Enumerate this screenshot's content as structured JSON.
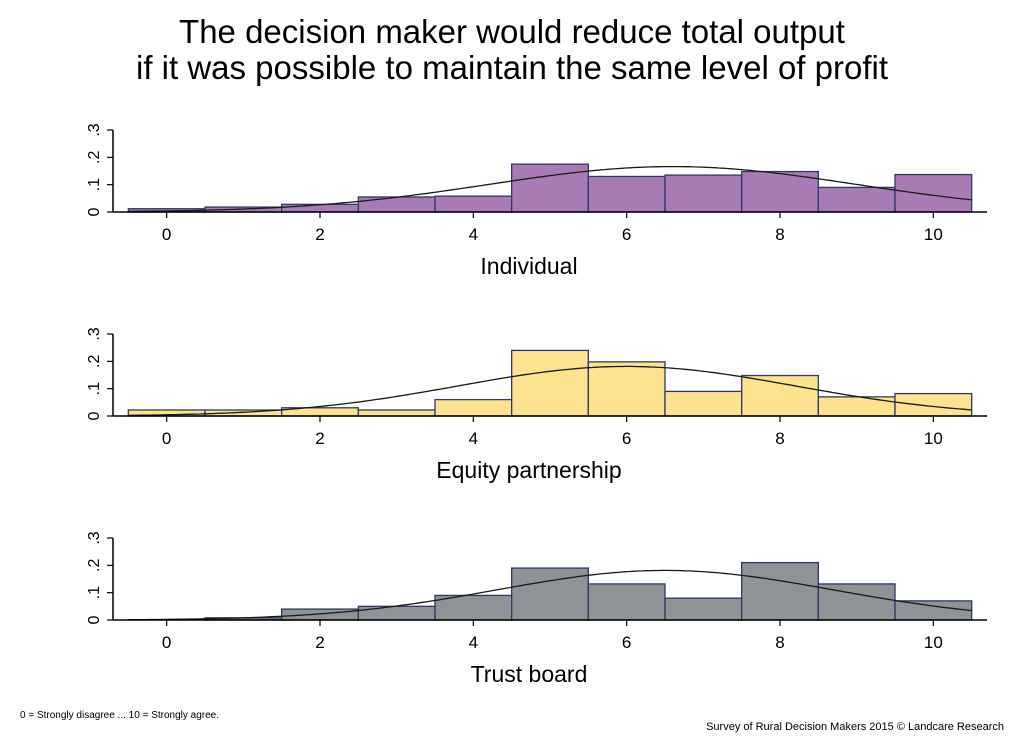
{
  "title_line1": "The decision maker would reduce total output",
  "title_line2": "if it was possible to maintain the same level of profit",
  "footnote_left": "0 = Strongly disagree ... 10 = Strongly agree.",
  "footnote_right": "Survey of Rural Decision Makers 2015 © Landcare Research",
  "chart_data": [
    {
      "type": "bar",
      "xlabel": "Individual",
      "fill": "#a87bb5",
      "stroke": "#2c3a64",
      "xlim": [
        -0.7,
        10.7
      ],
      "ylim": [
        0,
        0.3
      ],
      "xticks": [
        0,
        2,
        4,
        6,
        8,
        10
      ],
      "yticks": [
        {
          "v": 0,
          "label": "0"
        },
        {
          "v": 0.1,
          "label": ".1"
        },
        {
          "v": 0.2,
          "label": ".2"
        },
        {
          "v": 0.3,
          "label": ".3"
        }
      ],
      "categories": [
        0,
        1,
        2,
        3,
        4,
        5,
        6,
        7,
        8,
        9,
        10
      ],
      "values": [
        0.012,
        0.018,
        0.028,
        0.055,
        0.058,
        0.175,
        0.13,
        0.135,
        0.148,
        0.09,
        0.137
      ],
      "density_curve": {
        "mean": 6.6,
        "sd": 2.4
      }
    },
    {
      "type": "bar",
      "xlabel": "Equity partnership",
      "fill": "#fde38f",
      "stroke": "#2c3a64",
      "xlim": [
        -0.7,
        10.7
      ],
      "ylim": [
        0,
        0.3
      ],
      "xticks": [
        0,
        2,
        4,
        6,
        8,
        10
      ],
      "yticks": [
        {
          "v": 0,
          "label": "0"
        },
        {
          "v": 0.1,
          "label": ".1"
        },
        {
          "v": 0.2,
          "label": ".2"
        },
        {
          "v": 0.3,
          "label": ".3"
        }
      ],
      "categories": [
        0,
        1,
        2,
        3,
        4,
        5,
        6,
        7,
        8,
        9,
        10
      ],
      "values": [
        0.022,
        0.022,
        0.03,
        0.022,
        0.06,
        0.24,
        0.198,
        0.09,
        0.148,
        0.07,
        0.082
      ],
      "density_curve": {
        "mean": 6.0,
        "sd": 2.2
      }
    },
    {
      "type": "bar",
      "xlabel": "Trust board",
      "fill": "#8f9297",
      "stroke": "#2c3a64",
      "xlim": [
        -0.7,
        10.7
      ],
      "ylim": [
        0,
        0.3
      ],
      "xticks": [
        0,
        2,
        4,
        6,
        8,
        10
      ],
      "yticks": [
        {
          "v": 0,
          "label": "0"
        },
        {
          "v": 0.1,
          "label": ".1"
        },
        {
          "v": 0.2,
          "label": ".2"
        },
        {
          "v": 0.3,
          "label": ".3"
        }
      ],
      "categories": [
        0,
        1,
        2,
        3,
        4,
        5,
        6,
        7,
        8,
        9,
        10
      ],
      "values": [
        0,
        0.008,
        0.04,
        0.05,
        0.09,
        0.19,
        0.132,
        0.08,
        0.21,
        0.132,
        0.07
      ],
      "density_curve": {
        "mean": 6.5,
        "sd": 2.2
      }
    }
  ]
}
